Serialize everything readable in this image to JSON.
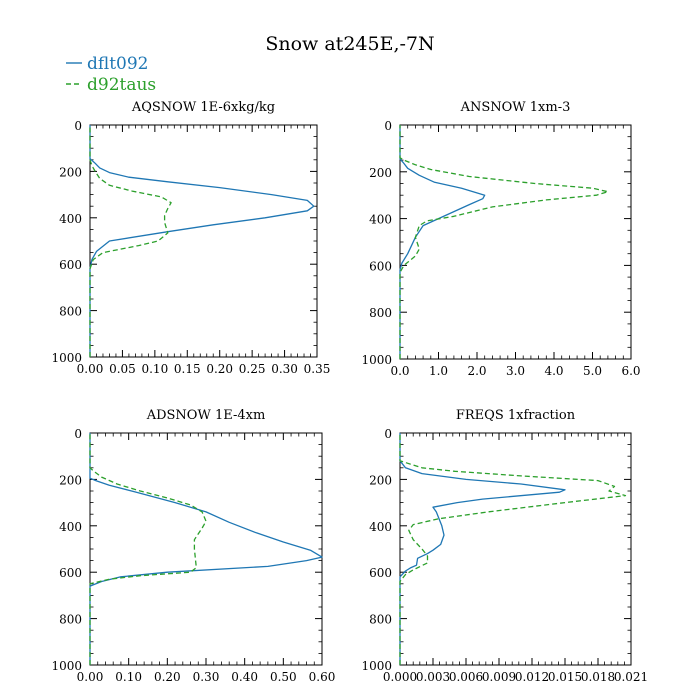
{
  "title": "Snow at245E,-7N",
  "colors": {
    "series1": "#1f77b4",
    "series2": "#2ca02c"
  },
  "legend": [
    {
      "name": "dflt092",
      "style": "solid"
    },
    {
      "name": "d92taus",
      "style": "dashed"
    }
  ],
  "chart_data": [
    {
      "type": "line",
      "title": "AQSNOW 1E-6xkg/kg",
      "xlim": [
        0,
        0.35
      ],
      "ylim": [
        1000,
        0
      ],
      "xticks": [
        "0.00",
        "0.05",
        "0.10",
        "0.15",
        "0.20",
        "0.25",
        "0.30",
        "0.35"
      ],
      "yticks": [
        "0",
        "200",
        "400",
        "600",
        "800",
        "1000"
      ],
      "series": [
        {
          "name": "dflt092",
          "points": [
            [
              0,
              1000
            ],
            [
              0,
              650
            ],
            [
              0,
              620
            ],
            [
              0.003,
              580
            ],
            [
              0.01,
              545
            ],
            [
              0.03,
              500
            ],
            [
              0.12,
              460
            ],
            [
              0.19,
              430
            ],
            [
              0.27,
              400
            ],
            [
              0.335,
              370
            ],
            [
              0.345,
              350
            ],
            [
              0.335,
              325
            ],
            [
              0.28,
              300
            ],
            [
              0.2,
              270
            ],
            [
              0.12,
              245
            ],
            [
              0.06,
              225
            ],
            [
              0.03,
              205
            ],
            [
              0.015,
              185
            ],
            [
              0.008,
              165
            ],
            [
              0,
              145
            ],
            [
              0,
              0
            ]
          ]
        },
        {
          "name": "d92taus",
          "points": [
            [
              0,
              1000
            ],
            [
              0,
              650
            ],
            [
              0,
              620
            ],
            [
              0.005,
              580
            ],
            [
              0.02,
              550
            ],
            [
              0.075,
              520
            ],
            [
              0.105,
              500
            ],
            [
              0.12,
              465
            ],
            [
              0.115,
              420
            ],
            [
              0.115,
              390
            ],
            [
              0.12,
              360
            ],
            [
              0.125,
              335
            ],
            [
              0.11,
              310
            ],
            [
              0.065,
              285
            ],
            [
              0.03,
              260
            ],
            [
              0.015,
              230
            ],
            [
              0.008,
              200
            ],
            [
              0.003,
              175
            ],
            [
              0,
              150
            ],
            [
              0,
              0
            ]
          ]
        }
      ]
    },
    {
      "type": "line",
      "title": "ANSNOW 1xm-3",
      "xlim": [
        0,
        6
      ],
      "ylim": [
        1000,
        0
      ],
      "xticks": [
        "0.0",
        "1.0",
        "2.0",
        "3.0",
        "4.0",
        "5.0",
        "6.0"
      ],
      "yticks": [
        "0",
        "200",
        "400",
        "600",
        "800",
        "1000"
      ],
      "series": [
        {
          "name": "dflt092",
          "points": [
            [
              0,
              1000
            ],
            [
              0,
              620
            ],
            [
              0.05,
              590
            ],
            [
              0.2,
              550
            ],
            [
              0.4,
              480
            ],
            [
              0.6,
              430
            ],
            [
              1.0,
              400
            ],
            [
              1.4,
              370
            ],
            [
              1.8,
              340
            ],
            [
              2.15,
              315
            ],
            [
              2.2,
              300
            ],
            [
              1.6,
              270
            ],
            [
              0.9,
              245
            ],
            [
              0.5,
              215
            ],
            [
              0.2,
              185
            ],
            [
              0.08,
              160
            ],
            [
              0,
              145
            ],
            [
              0,
              0
            ]
          ]
        },
        {
          "name": "d92taus",
          "points": [
            [
              0,
              1000
            ],
            [
              0,
              630
            ],
            [
              0.1,
              600
            ],
            [
              0.4,
              560
            ],
            [
              0.5,
              530
            ],
            [
              0.4,
              480
            ],
            [
              0.5,
              430
            ],
            [
              0.7,
              410
            ],
            [
              1.4,
              390
            ],
            [
              2.4,
              350
            ],
            [
              3.8,
              320
            ],
            [
              5.1,
              300
            ],
            [
              5.4,
              285
            ],
            [
              5.0,
              270
            ],
            [
              3.5,
              250
            ],
            [
              1.8,
              220
            ],
            [
              0.8,
              190
            ],
            [
              0.4,
              170
            ],
            [
              0.1,
              150
            ],
            [
              0,
              140
            ],
            [
              0,
              0
            ]
          ]
        }
      ]
    },
    {
      "type": "line",
      "title": "ADSNOW 1E-4xm",
      "xlim": [
        0,
        0.6
      ],
      "ylim": [
        1000,
        0
      ],
      "xticks": [
        "0.00",
        "0.10",
        "0.20",
        "0.30",
        "0.40",
        "0.50",
        "0.60"
      ],
      "yticks": [
        "0",
        "200",
        "400",
        "600",
        "800",
        "1000"
      ],
      "series": [
        {
          "name": "dflt092",
          "points": [
            [
              0,
              1000
            ],
            [
              0,
              660
            ],
            [
              0.03,
              640
            ],
            [
              0.08,
              620
            ],
            [
              0.2,
              600
            ],
            [
              0.46,
              575
            ],
            [
              0.56,
              550
            ],
            [
              0.6,
              535
            ],
            [
              0.57,
              505
            ],
            [
              0.5,
              470
            ],
            [
              0.43,
              430
            ],
            [
              0.36,
              385
            ],
            [
              0.3,
              340
            ],
            [
              0.22,
              300
            ],
            [
              0.12,
              255
            ],
            [
              0.05,
              225
            ],
            [
              0.015,
              205
            ],
            [
              0,
              195
            ],
            [
              0,
              0
            ]
          ]
        },
        {
          "name": "d92taus",
          "points": [
            [
              0,
              1000
            ],
            [
              0,
              650
            ],
            [
              0.05,
              630
            ],
            [
              0.13,
              615
            ],
            [
              0.26,
              600
            ],
            [
              0.275,
              580
            ],
            [
              0.27,
              500
            ],
            [
              0.27,
              460
            ],
            [
              0.29,
              410
            ],
            [
              0.3,
              380
            ],
            [
              0.29,
              340
            ],
            [
              0.26,
              310
            ],
            [
              0.2,
              280
            ],
            [
              0.13,
              250
            ],
            [
              0.07,
              220
            ],
            [
              0.03,
              190
            ],
            [
              0.01,
              165
            ],
            [
              0,
              150
            ],
            [
              0,
              0
            ]
          ]
        }
      ]
    },
    {
      "type": "line",
      "title": "FREQS 1xfraction",
      "xlim": [
        0,
        0.021
      ],
      "ylim": [
        1000,
        0
      ],
      "xticks": [
        "0.000",
        "0.003",
        "0.006",
        "0.009",
        "0.012",
        "0.015",
        "0.018",
        "0.021"
      ],
      "yticks": [
        "0",
        "200",
        "400",
        "600",
        "800",
        "1000"
      ],
      "series": [
        {
          "name": "dflt092",
          "points": [
            [
              0,
              1000
            ],
            [
              0,
              620
            ],
            [
              0.0005,
              595
            ],
            [
              0.001,
              580
            ],
            [
              0.0015,
              570
            ],
            [
              0.0016,
              540
            ],
            [
              0.0025,
              520
            ],
            [
              0.003,
              505
            ],
            [
              0.0037,
              480
            ],
            [
              0.004,
              440
            ],
            [
              0.0038,
              400
            ],
            [
              0.0033,
              340
            ],
            [
              0.003,
              320
            ],
            [
              0.0052,
              300
            ],
            [
              0.0075,
              285
            ],
            [
              0.0145,
              255
            ],
            [
              0.015,
              245
            ],
            [
              0.011,
              220
            ],
            [
              0.006,
              200
            ],
            [
              0.002,
              175
            ],
            [
              0.0005,
              150
            ],
            [
              0,
              120
            ],
            [
              0,
              0
            ]
          ]
        },
        {
          "name": "d92taus",
          "points": [
            [
              0,
              1000
            ],
            [
              0,
              640
            ],
            [
              0.0005,
              610
            ],
            [
              0.0012,
              590
            ],
            [
              0.0025,
              560
            ],
            [
              0.0025,
              530
            ],
            [
              0.002,
              500
            ],
            [
              0.0012,
              460
            ],
            [
              0.0008,
              420
            ],
            [
              0.0012,
              395
            ],
            [
              0.0035,
              370
            ],
            [
              0.008,
              340
            ],
            [
              0.015,
              300
            ],
            [
              0.0205,
              270
            ],
            [
              0.019,
              250
            ],
            [
              0.0195,
              230
            ],
            [
              0.018,
              205
            ],
            [
              0.011,
              185
            ],
            [
              0.005,
              165
            ],
            [
              0.002,
              150
            ],
            [
              0,
              120
            ],
            [
              0,
              0
            ]
          ]
        }
      ]
    }
  ]
}
